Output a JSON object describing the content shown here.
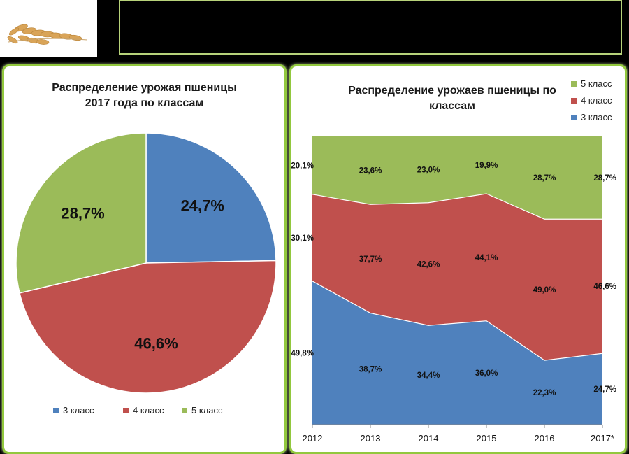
{
  "chart_data": [
    {
      "type": "pie",
      "title_line1": "Распределение урожая пшеницы",
      "title_line2": "2017 года по классам",
      "slices": [
        {
          "name": "3 класс",
          "value": 24.7,
          "label": "24,7%",
          "color": "#4f81bd"
        },
        {
          "name": "4 класс",
          "value": 46.6,
          "label": "46,6%",
          "color": "#c0504d"
        },
        {
          "name": "5 класс",
          "value": 28.7,
          "label": "28,7%",
          "color": "#9bbb59"
        }
      ],
      "legend_position": "bottom"
    },
    {
      "type": "area",
      "stacked": true,
      "title_line1": "Распределение урожаев пшеницы по",
      "title_line2": "классам",
      "categories": [
        "2012",
        "2013",
        "2014",
        "2015",
        "2016",
        "2017*"
      ],
      "series": [
        {
          "name": "3 класс",
          "color": "#4f81bd",
          "values": [
            49.8,
            38.7,
            34.4,
            36.0,
            22.3,
            24.7
          ],
          "labels": [
            "49,8%",
            "38,7%",
            "34,4%",
            "36,0%",
            "22,3%",
            "24,7%"
          ]
        },
        {
          "name": "4 класс",
          "color": "#c0504d",
          "values": [
            30.1,
            37.7,
            42.6,
            44.1,
            49.0,
            46.6
          ],
          "labels": [
            "30,1%",
            "37,7%",
            "42,6%",
            "44,1%",
            "49,0%",
            "46,6%"
          ]
        },
        {
          "name": "5 класс",
          "color": "#9bbb59",
          "values": [
            20.1,
            23.6,
            23.0,
            19.9,
            28.7,
            28.7
          ],
          "labels": [
            "20,1%",
            "23,6%",
            "23,0%",
            "19,9%",
            "28,7%",
            "28,7%"
          ]
        }
      ],
      "ylim": [
        0,
        100
      ],
      "legend_position": "top-right"
    }
  ]
}
